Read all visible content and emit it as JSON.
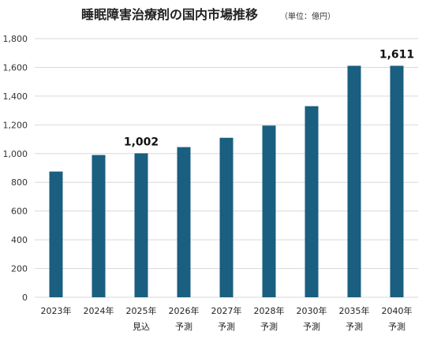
{
  "chart_data": {
    "type": "bar",
    "title": "睡眠障害治療剤の国内市場推移",
    "unit_note": "（単位：億円）",
    "categories": [
      "2023年",
      "2024年",
      "2025年",
      "2026年",
      "2027年",
      "2028年",
      "2030年",
      "2035年",
      "2040年"
    ],
    "category_sublabels": [
      "",
      "",
      "見込",
      "予測",
      "予測",
      "予測",
      "予測",
      "予測",
      "予測"
    ],
    "values": [
      875,
      990,
      1002,
      1045,
      1110,
      1195,
      1330,
      1611,
      1611
    ],
    "data_labels": [
      {
        "index": 2,
        "text": "1,002"
      },
      {
        "index": 8,
        "text": "1,611"
      }
    ],
    "ylim": [
      0,
      1800
    ],
    "yticks": [
      0,
      200,
      400,
      600,
      800,
      1000,
      1200,
      1400,
      1600,
      1800
    ],
    "ytick_labels": [
      "0",
      "200",
      "400",
      "600",
      "800",
      "1,000",
      "1,200",
      "1,400",
      "1,600",
      "1,800"
    ],
    "grid": true,
    "bar_color": "#1a5e80",
    "grid_color": "#d9d9d9"
  }
}
